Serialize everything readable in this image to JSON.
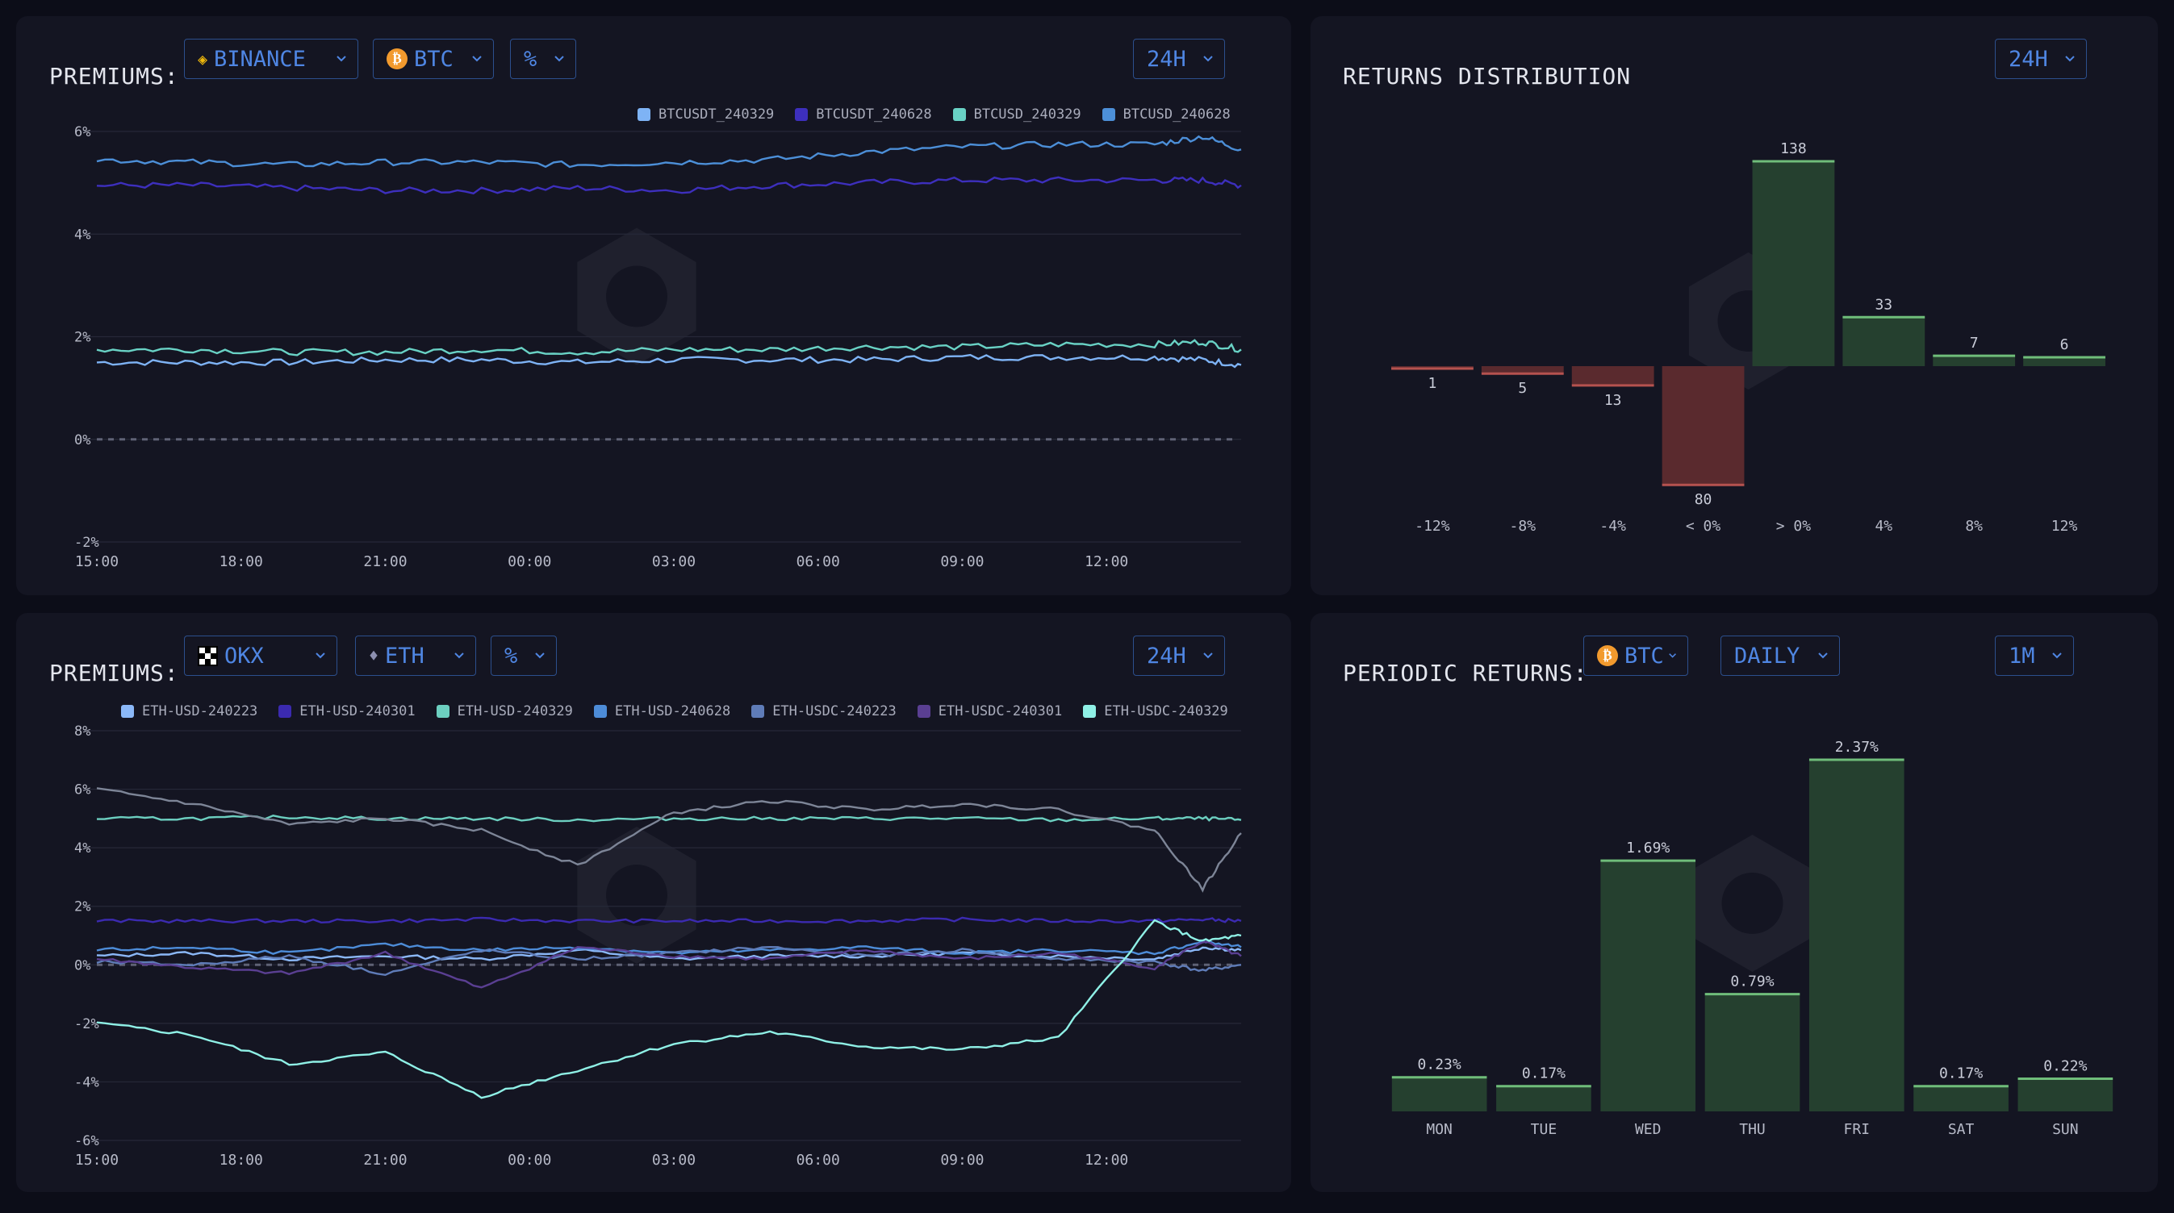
{
  "premiums_btc": {
    "title": "PREMIUMS:",
    "exchange": "BINANCE",
    "coin": "BTC",
    "unit": "%",
    "range": "24H",
    "legend": [
      {
        "label": "BTCUSDT_240329",
        "color": "#7eb3f5"
      },
      {
        "label": "BTCUSDT_240628",
        "color": "#3d2fbd"
      },
      {
        "label": "BTCUSD_240329",
        "color": "#69d2c5"
      },
      {
        "label": "BTCUSD_240628",
        "color": "#4c8fd8"
      }
    ]
  },
  "returns_dist": {
    "title": "RETURNS DISTRIBUTION",
    "range": "24H"
  },
  "premiums_eth": {
    "title": "PREMIUMS:",
    "exchange": "OKX",
    "coin": "ETH",
    "unit": "%",
    "range": "24H",
    "legend": [
      {
        "label": "ETH-USD-240223",
        "color": "#8bb8f8"
      },
      {
        "label": "ETH-USD-240301",
        "color": "#3b2ab0"
      },
      {
        "label": "ETH-USD-240329",
        "color": "#6ccfc0"
      },
      {
        "label": "ETH-USD-240628",
        "color": "#4d8cd8"
      },
      {
        "label": "ETH-USDC-240223",
        "color": "#5f7cb8"
      },
      {
        "label": "ETH-USDC-240301",
        "color": "#5a3f92"
      },
      {
        "label": "ETH-USDC-240329",
        "color": "#8ff0e6"
      }
    ]
  },
  "periodic": {
    "title": "PERIODIC RETURNS:",
    "coin": "BTC",
    "period": "DAILY",
    "range": "1M"
  },
  "chart_data": [
    {
      "type": "line",
      "title": "PREMIUMS: BINANCE BTC %",
      "x_ticks": [
        "15:00",
        "18:00",
        "21:00",
        "00:00",
        "03:00",
        "06:00",
        "09:00",
        "12:00"
      ],
      "y_ticks": [
        "6%",
        "4%",
        "2%",
        "0%",
        "-2%"
      ],
      "ylim": [
        -2,
        6
      ],
      "x_range_hours": [
        0,
        23.8
      ],
      "series": [
        {
          "name": "BTCUSDT_240329",
          "color": "#7eb3f5",
          "x": [
            0,
            2,
            4,
            6,
            8,
            10,
            12,
            14,
            16,
            18,
            20,
            22,
            23,
            23.8
          ],
          "y": [
            1.5,
            1.5,
            1.5,
            1.55,
            1.55,
            1.5,
            1.55,
            1.55,
            1.55,
            1.6,
            1.6,
            1.6,
            1.55,
            1.45
          ]
        },
        {
          "name": "BTCUSDT_240628",
          "color": "#3d2fbd",
          "x": [
            0,
            2,
            4,
            6,
            8,
            10,
            12,
            14,
            16,
            18,
            20,
            22,
            23,
            23.8
          ],
          "y": [
            4.95,
            4.95,
            4.9,
            4.85,
            4.85,
            4.9,
            4.85,
            4.95,
            5.0,
            5.05,
            5.05,
            5.05,
            5.05,
            4.95
          ]
        },
        {
          "name": "BTCUSD_240329",
          "color": "#69d2c5",
          "x": [
            0,
            2,
            4,
            6,
            8,
            10,
            12,
            14,
            16,
            18,
            20,
            22,
            23,
            23.8
          ],
          "y": [
            1.75,
            1.75,
            1.7,
            1.7,
            1.75,
            1.7,
            1.75,
            1.75,
            1.8,
            1.8,
            1.85,
            1.85,
            1.9,
            1.75
          ]
        },
        {
          "name": "BTCUSD_240628",
          "color": "#4c8fd8",
          "x": [
            0,
            2,
            4,
            6,
            8,
            10,
            12,
            14,
            16,
            18,
            20,
            22,
            23,
            23.8
          ],
          "y": [
            5.45,
            5.4,
            5.35,
            5.4,
            5.4,
            5.35,
            5.4,
            5.45,
            5.6,
            5.7,
            5.75,
            5.75,
            5.9,
            5.65
          ]
        }
      ],
      "reference_line": 0
    },
    {
      "type": "bar",
      "title": "RETURNS DISTRIBUTION",
      "categories": [
        "-12%",
        "-8%",
        "-4%",
        "< 0%",
        "> 0%",
        "4%",
        "8%",
        "12%"
      ],
      "values": [
        -1,
        -5,
        -13,
        -80,
        138,
        33,
        7,
        6
      ],
      "labels": [
        "1",
        "5",
        "13",
        "80",
        "138",
        "33",
        "7",
        "6"
      ],
      "colors": {
        "negative": "#5a2a2e",
        "positive": "#25402f"
      }
    },
    {
      "type": "line",
      "title": "PREMIUMS: OKX ETH %",
      "x_ticks": [
        "15:00",
        "18:00",
        "21:00",
        "00:00",
        "03:00",
        "06:00",
        "09:00",
        "12:00"
      ],
      "y_ticks": [
        "8%",
        "6%",
        "4%",
        "2%",
        "0%",
        "-2%",
        "-4%",
        "-6%"
      ],
      "ylim": [
        -6,
        8
      ],
      "x_range_hours": [
        0,
        23.8
      ],
      "series": [
        {
          "name": "ETH-USD-240223",
          "color": "#8bb8f8",
          "x": [
            0,
            2,
            4,
            6,
            8,
            10,
            12,
            14,
            16,
            18,
            20,
            22,
            23,
            23.8
          ],
          "y": [
            0.3,
            0.4,
            0.2,
            0.3,
            0.2,
            0.5,
            0.2,
            0.3,
            0.3,
            0.4,
            0.3,
            0.2,
            0.6,
            0.5
          ]
        },
        {
          "name": "ETH-USD-240301",
          "color": "#3b2ab0",
          "x": [
            0,
            2,
            4,
            6,
            8,
            10,
            12,
            14,
            16,
            18,
            20,
            22,
            23,
            23.8
          ],
          "y": [
            1.5,
            1.5,
            1.5,
            1.5,
            1.55,
            1.5,
            1.5,
            1.5,
            1.5,
            1.55,
            1.5,
            1.5,
            1.55,
            1.5
          ]
        },
        {
          "name": "ETH-USD-240329",
          "color": "#6ccfc0",
          "x": [
            0,
            2,
            4,
            6,
            8,
            10,
            12,
            14,
            16,
            18,
            20,
            22,
            23,
            23.8
          ],
          "y": [
            5.0,
            5.0,
            5.05,
            5.0,
            5.0,
            4.95,
            5.0,
            5.0,
            5.0,
            5.0,
            4.95,
            5.0,
            5.0,
            4.95
          ]
        },
        {
          "name": "ETH-USD-240628",
          "color": "#4d8cd8",
          "x": [
            0,
            2,
            4,
            6,
            8,
            10,
            12,
            14,
            16,
            18,
            20,
            22,
            23,
            23.8
          ],
          "y": [
            0.5,
            0.6,
            0.4,
            0.7,
            0.5,
            0.6,
            0.4,
            0.5,
            0.6,
            0.4,
            0.5,
            0.4,
            0.8,
            0.6
          ]
        },
        {
          "name": "ETH-USDC-240223",
          "color": "#5f7cb8",
          "x": [
            0,
            2,
            4,
            6,
            8,
            10,
            12,
            14,
            16,
            18,
            20,
            22,
            23,
            23.8
          ],
          "y": [
            0.1,
            0.0,
            0.3,
            -0.3,
            0.5,
            0.2,
            0.4,
            0.6,
            0.3,
            0.5,
            0.2,
            0.1,
            -0.2,
            0.0
          ]
        },
        {
          "name": "ETH-USDC-240301",
          "color": "#5a3f92",
          "x": [
            0,
            2,
            4,
            6,
            8,
            10,
            12,
            14,
            16,
            18,
            20,
            22,
            23,
            23.8
          ],
          "y": [
            0.2,
            -0.1,
            -0.3,
            0.4,
            -0.8,
            0.6,
            0.3,
            0.2,
            0.5,
            0.2,
            0.4,
            -0.1,
            0.8,
            0.3
          ]
        },
        {
          "name": "ETH-USDC-240329",
          "color": "#8ff0e6",
          "x": [
            0,
            2,
            4,
            6,
            8,
            10,
            12,
            14,
            16,
            18,
            20,
            22,
            23,
            23.8
          ],
          "y": [
            -2.0,
            -2.4,
            -3.4,
            -3.0,
            -4.5,
            -3.6,
            -2.7,
            -2.3,
            -2.8,
            -2.9,
            -2.5,
            1.5,
            0.8,
            1.0
          ]
        },
        {
          "name": "",
          "color": "#7d8597",
          "x": [
            0,
            2,
            4,
            6,
            8,
            10,
            12,
            14,
            16,
            18,
            20,
            22,
            23,
            23.8
          ],
          "y": [
            6.0,
            5.5,
            4.8,
            5.0,
            4.6,
            3.4,
            5.2,
            5.6,
            5.3,
            5.5,
            5.3,
            4.6,
            2.6,
            4.5
          ]
        }
      ],
      "reference_line": 0
    },
    {
      "type": "bar",
      "title": "PERIODIC RETURNS: BTC DAILY",
      "categories": [
        "MON",
        "TUE",
        "WED",
        "THU",
        "FRI",
        "SAT",
        "SUN"
      ],
      "values": [
        0.23,
        0.17,
        1.69,
        0.79,
        2.37,
        0.17,
        0.22
      ],
      "labels": [
        "0.23%",
        "0.17%",
        "1.69%",
        "0.79%",
        "2.37%",
        "0.17%",
        "0.22%"
      ],
      "colors": {
        "positive": "#25402f"
      }
    }
  ]
}
